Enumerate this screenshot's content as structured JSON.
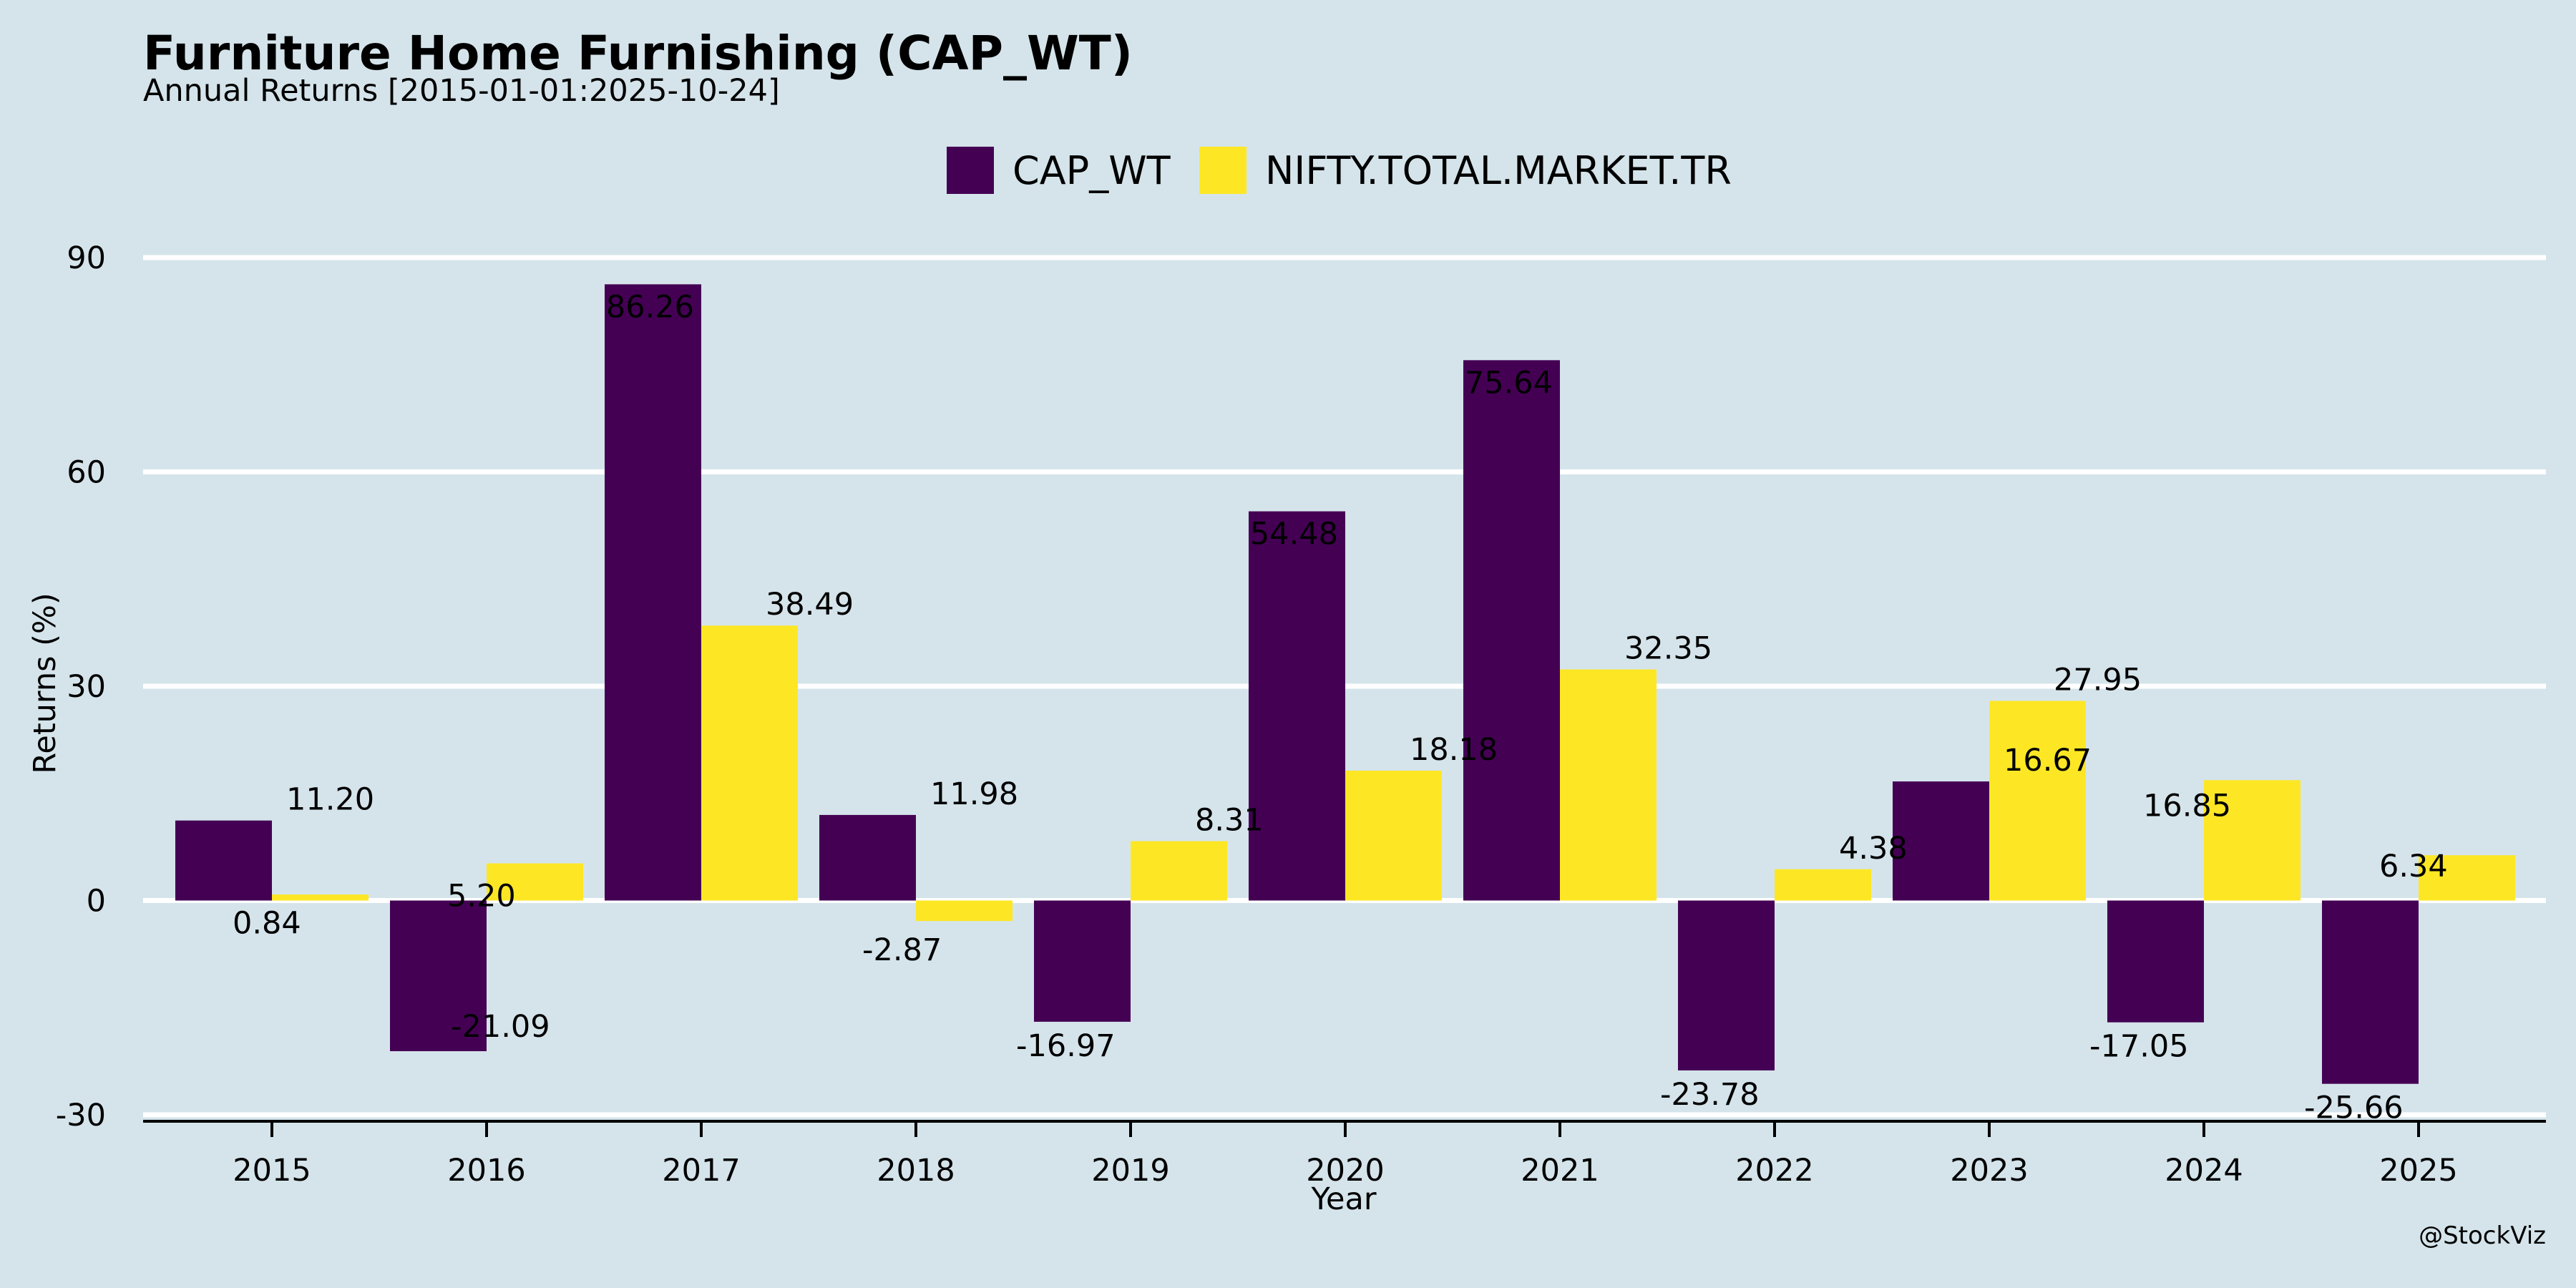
{
  "title": "Furniture Home Furnishing (CAP_WT)",
  "subtitle": "Annual Returns [2015-01-01:2025-10-24]",
  "credit": "@StockViz",
  "chart_data": {
    "type": "bar",
    "xlabel": "Year",
    "ylabel": "Returns (%)",
    "ylim": [
      -30,
      90
    ],
    "yticks": [
      -30,
      0,
      30,
      60,
      90
    ],
    "grid": true,
    "legend": "top-center",
    "categories": [
      "2015",
      "2016",
      "2017",
      "2018",
      "2019",
      "2020",
      "2021",
      "2022",
      "2023",
      "2024",
      "2025"
    ],
    "series": [
      {
        "name": "CAP_WT",
        "color": "#440154",
        "values": [
          11.2,
          -21.09,
          86.26,
          11.98,
          -16.97,
          54.48,
          75.64,
          -23.78,
          16.67,
          -17.05,
          -25.66
        ],
        "labels": [
          "11.20",
          "-21.09",
          "86.26",
          "11.98",
          "-16.97",
          "54.48",
          "75.64",
          "-23.78",
          "16.67",
          "-17.05",
          "-25.66"
        ]
      },
      {
        "name": "NIFTY.TOTAL.MARKET.TR",
        "color": "#fde725",
        "values": [
          0.84,
          5.2,
          38.49,
          -2.87,
          8.31,
          18.18,
          32.35,
          4.38,
          27.95,
          16.85,
          6.34
        ],
        "labels": [
          "0.84",
          "5.20",
          "38.49",
          "-2.87",
          "8.31",
          "18.18",
          "32.35",
          "4.38",
          "27.95",
          "16.85",
          "6.34"
        ]
      }
    ]
  }
}
